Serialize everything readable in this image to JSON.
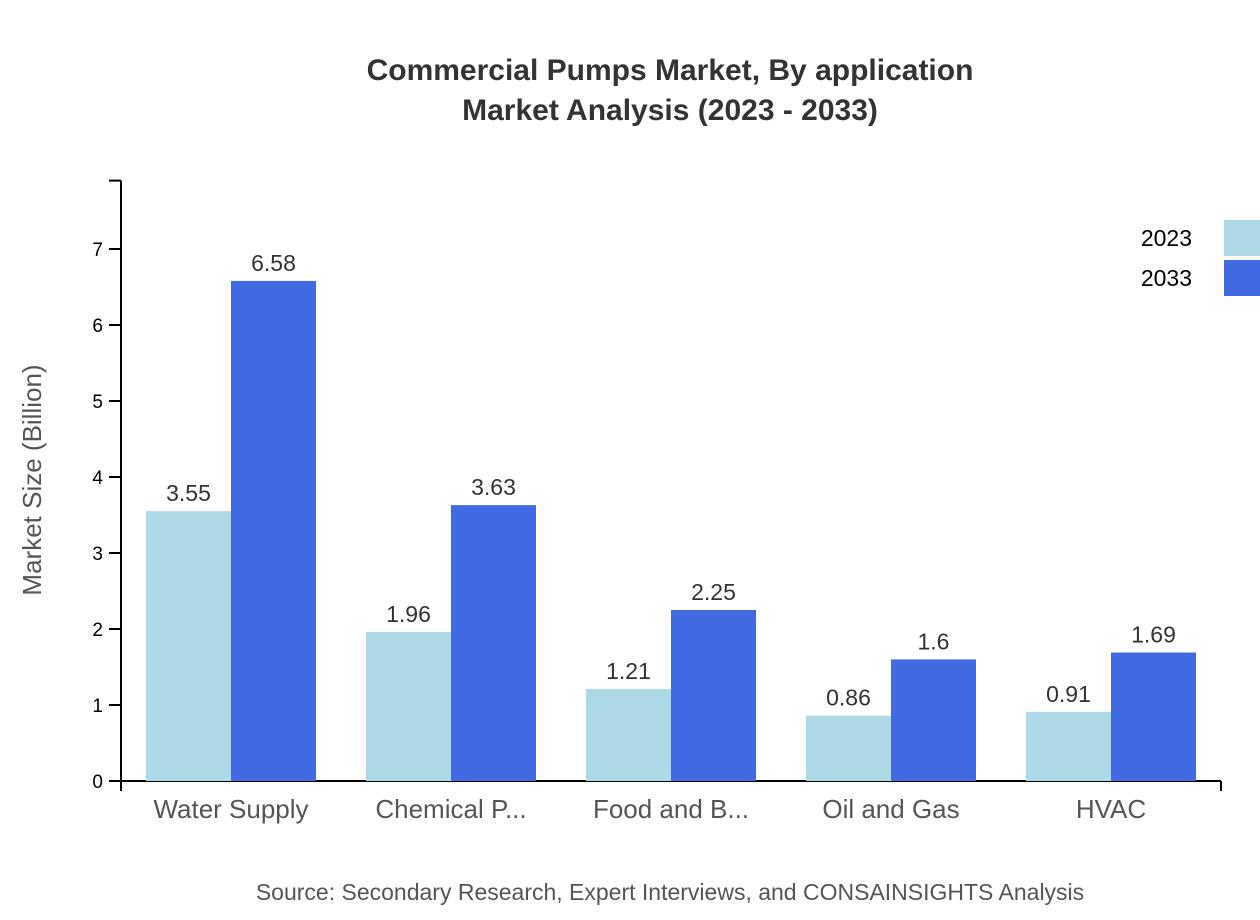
{
  "chart_data": {
    "type": "bar",
    "title": "Commercial Pumps Market, By application",
    "subtitle": "Market Analysis (2023 - 2033)",
    "ylabel": "Market Size (Billion)",
    "xlabel": "",
    "ylim": [
      0,
      7.9
    ],
    "yticks": [
      0,
      1,
      2,
      3,
      4,
      5,
      6,
      7
    ],
    "categories": [
      "Water Supply",
      "Chemical P...",
      "Food and B...",
      "Oil and Gas",
      "HVAC"
    ],
    "series": [
      {
        "name": "2023",
        "color": "#add8e6",
        "values": [
          3.55,
          1.96,
          1.21,
          0.86,
          0.91
        ]
      },
      {
        "name": "2033",
        "color": "#4169e1",
        "values": [
          6.58,
          3.63,
          2.25,
          1.6,
          1.69
        ]
      }
    ],
    "legend": "top-right",
    "grid": false,
    "source": "Source: Secondary Research, Expert Interviews, and CONSAINSIGHTS Analysis"
  }
}
